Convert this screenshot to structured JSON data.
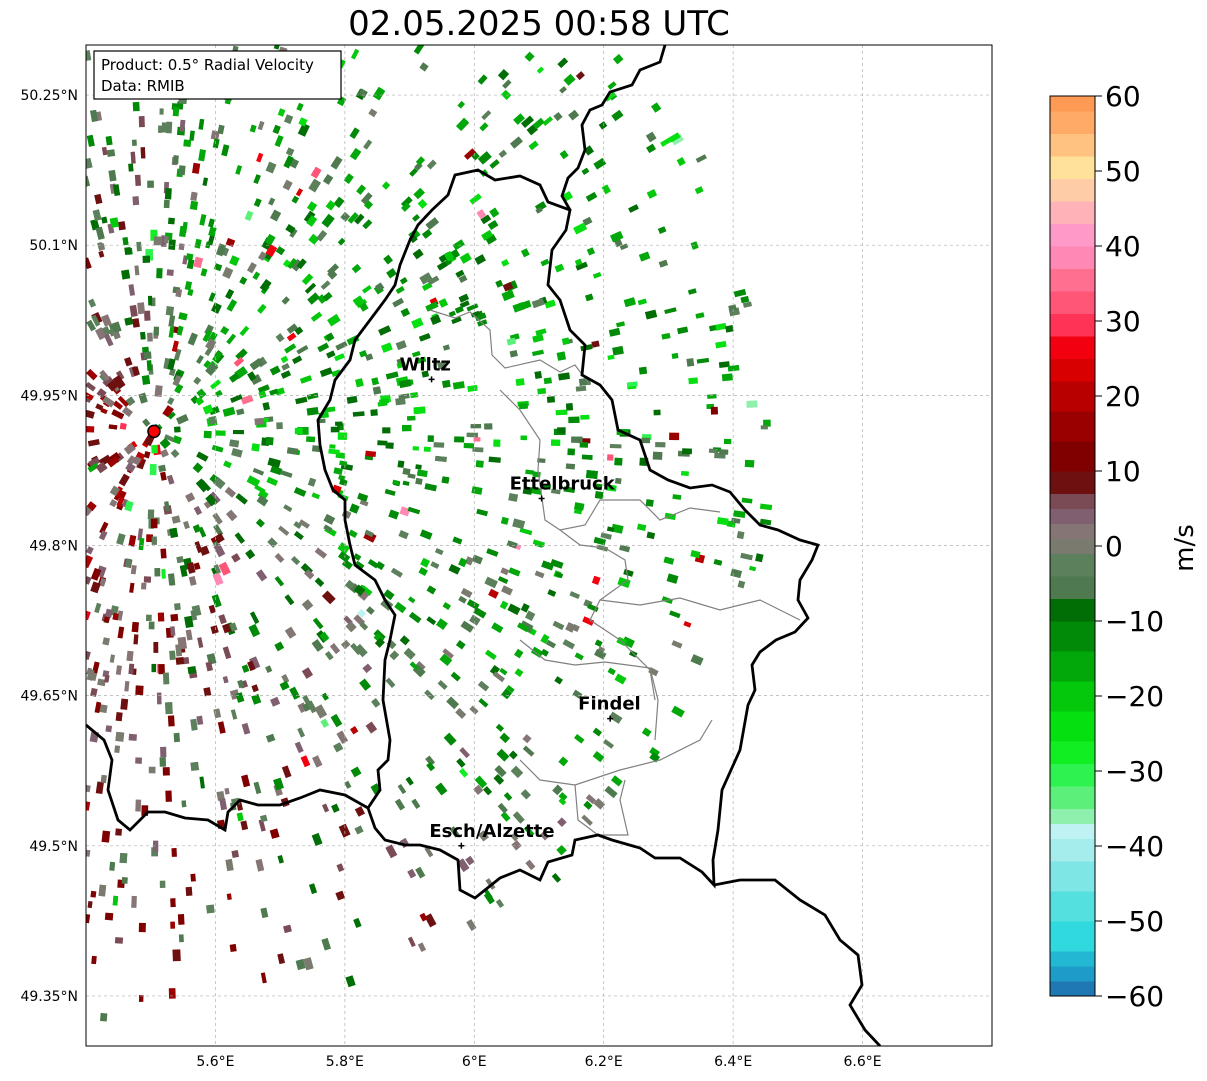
{
  "title": "02.05.2025 00:58 UTC",
  "info_box": {
    "product": "Product: 0.5° Radial Velocity",
    "data": "Data: RMIB"
  },
  "lat_ticks": [
    {
      "value": 50.25,
      "label": "50.25°N"
    },
    {
      "value": 50.1,
      "label": "50.1°N"
    },
    {
      "value": 49.95,
      "label": "49.95°N"
    },
    {
      "value": 49.8,
      "label": "49.8°N"
    },
    {
      "value": 49.65,
      "label": "49.65°N"
    },
    {
      "value": 49.5,
      "label": "49.5°N"
    },
    {
      "value": 49.35,
      "label": "49.35°N"
    }
  ],
  "lon_ticks": [
    {
      "value": 5.6,
      "label": "5.6°E"
    },
    {
      "value": 5.8,
      "label": "5.8°E"
    },
    {
      "value": 6.0,
      "label": "6°E"
    },
    {
      "value": 6.2,
      "label": "6.2°E"
    },
    {
      "value": 6.4,
      "label": "6.4°E"
    },
    {
      "value": 6.6,
      "label": "6.6°E"
    }
  ],
  "extent": {
    "lon_min": 5.4,
    "lon_max": 6.8,
    "lat_min": 49.3,
    "lat_max": 50.3
  },
  "radar_site": {
    "lon": 5.505,
    "lat": 49.914
  },
  "cities": [
    {
      "name": "Wiltz",
      "lon": 5.934,
      "lat": 49.966
    },
    {
      "name": "Ettelbruck",
      "lon": 6.104,
      "lat": 49.847
    },
    {
      "name": "Findel",
      "lon": 6.21,
      "lat": 49.627
    },
    {
      "name": "Esch/Alzette",
      "lon": 5.98,
      "lat": 49.5
    }
  ],
  "colorbar": {
    "unit": "m/s",
    "min": -60,
    "max": 60,
    "ticks": [
      {
        "value": 60,
        "label": "60"
      },
      {
        "value": 50,
        "label": "50"
      },
      {
        "value": 40,
        "label": "40"
      },
      {
        "value": 30,
        "label": "30"
      },
      {
        "value": 20,
        "label": "20"
      },
      {
        "value": 10,
        "label": "10"
      },
      {
        "value": 0,
        "label": "0"
      },
      {
        "value": -10,
        "label": "−10"
      },
      {
        "value": -20,
        "label": "−20"
      },
      {
        "value": -30,
        "label": "−30"
      },
      {
        "value": -40,
        "label": "−40"
      },
      {
        "value": -50,
        "label": "−50"
      },
      {
        "value": -60,
        "label": "−60"
      }
    ],
    "stops": [
      {
        "from": -60,
        "to": -58,
        "color": "#1f77b4"
      },
      {
        "from": -58,
        "to": -56,
        "color": "#1f9bc9"
      },
      {
        "from": -56,
        "to": -54,
        "color": "#22b8d4"
      },
      {
        "from": -54,
        "to": -50,
        "color": "#2fd9de"
      },
      {
        "from": -50,
        "to": -46,
        "color": "#55e0e0"
      },
      {
        "from": -46,
        "to": -42,
        "color": "#7fe6e6"
      },
      {
        "from": -42,
        "to": -39,
        "color": "#a5ecec"
      },
      {
        "from": -39,
        "to": -37,
        "color": "#bff2f2"
      },
      {
        "from": -37,
        "to": -35,
        "color": "#8ff0ad"
      },
      {
        "from": -35,
        "to": -32,
        "color": "#5cf07a"
      },
      {
        "from": -32,
        "to": -29,
        "color": "#2ef250"
      },
      {
        "from": -29,
        "to": -26,
        "color": "#11ef22"
      },
      {
        "from": -26,
        "to": -22,
        "color": "#05e010"
      },
      {
        "from": -22,
        "to": -18,
        "color": "#04c80c"
      },
      {
        "from": -18,
        "to": -14,
        "color": "#02a80a"
      },
      {
        "from": -14,
        "to": -10,
        "color": "#018a07"
      },
      {
        "from": -10,
        "to": -7,
        "color": "#006d05"
      },
      {
        "from": -7,
        "to": -4,
        "color": "#4f7a4f"
      },
      {
        "from": -4,
        "to": -1,
        "color": "#5c7f5c"
      },
      {
        "from": -1,
        "to": 1,
        "color": "#7a7a6e"
      },
      {
        "from": 1,
        "to": 3,
        "color": "#857575"
      },
      {
        "from": 3,
        "to": 5,
        "color": "#806070"
      },
      {
        "from": 5,
        "to": 7,
        "color": "#7a4a55"
      },
      {
        "from": 7,
        "to": 10,
        "color": "#6e1010"
      },
      {
        "from": 10,
        "to": 14,
        "color": "#800000"
      },
      {
        "from": 14,
        "to": 18,
        "color": "#9a0000"
      },
      {
        "from": 18,
        "to": 22,
        "color": "#b80000"
      },
      {
        "from": 22,
        "to": 25,
        "color": "#d80000"
      },
      {
        "from": 25,
        "to": 28,
        "color": "#f20010"
      },
      {
        "from": 28,
        "to": 31,
        "color": "#ff3355"
      },
      {
        "from": 31,
        "to": 34,
        "color": "#ff5577"
      },
      {
        "from": 34,
        "to": 37,
        "color": "#ff6f8f"
      },
      {
        "from": 37,
        "to": 40,
        "color": "#ff88b4"
      },
      {
        "from": 40,
        "to": 43,
        "color": "#ff99c8"
      },
      {
        "from": 43,
        "to": 46,
        "color": "#ffb3b8"
      },
      {
        "from": 46,
        "to": 49,
        "color": "#ffcca8"
      },
      {
        "from": 49,
        "to": 52,
        "color": "#ffe199"
      },
      {
        "from": 52,
        "to": 55,
        "color": "#ffc280"
      },
      {
        "from": 55,
        "to": 58,
        "color": "#ffaa66"
      },
      {
        "from": 58,
        "to": 60,
        "color": "#ff9a55"
      }
    ]
  },
  "colors": {
    "radar_site": "#ff0000",
    "border": "#000000",
    "region_border": "#808080",
    "grid": "#b0b0b0"
  }
}
